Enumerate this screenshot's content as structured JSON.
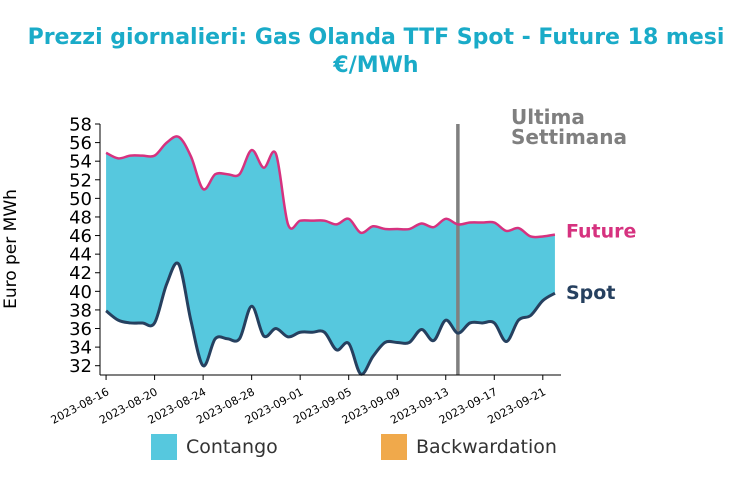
{
  "title_line1": "Prezzi giornalieri: Gas Olanda TTF Spot - Future 18 mesi",
  "title_line2": "€/MWh",
  "chart_data": {
    "type": "area",
    "title": "Prezzi giornalieri: Gas Olanda TTF Spot - Future 18 mesi €/MWh",
    "ylabel": "Euro per MWh",
    "xlabel": "",
    "ylim": [
      31,
      58
    ],
    "yticks": [
      32,
      34,
      36,
      38,
      40,
      42,
      44,
      46,
      48,
      50,
      52,
      54,
      56,
      58
    ],
    "xticks": [
      "2023-08-16",
      "2023-08-20",
      "2023-08-24",
      "2023-08-28",
      "2023-09-01",
      "2023-09-05",
      "2023-09-09",
      "2023-09-13",
      "2023-09-17",
      "2023-09-21"
    ],
    "grid": false,
    "marker": {
      "date": "2023-09-14",
      "label_line1": "Ultima",
      "label_line2": "Settimana"
    },
    "series": [
      {
        "name": "Future",
        "color": "#d6327f",
        "points": [
          [
            "2023-08-16",
            54.9
          ],
          [
            "2023-08-17",
            54.3
          ],
          [
            "2023-08-18",
            54.6
          ],
          [
            "2023-08-19",
            54.6
          ],
          [
            "2023-08-20",
            54.6
          ],
          [
            "2023-08-21",
            56.0
          ],
          [
            "2023-08-22",
            56.6
          ],
          [
            "2023-08-23",
            54.5
          ],
          [
            "2023-08-24",
            51.0
          ],
          [
            "2023-08-25",
            52.6
          ],
          [
            "2023-08-26",
            52.6
          ],
          [
            "2023-08-27",
            52.6
          ],
          [
            "2023-08-28",
            55.2
          ],
          [
            "2023-08-29",
            53.3
          ],
          [
            "2023-08-30",
            54.8
          ],
          [
            "2023-08-31",
            47.2
          ],
          [
            "2023-09-01",
            47.6
          ],
          [
            "2023-09-02",
            47.6
          ],
          [
            "2023-09-03",
            47.6
          ],
          [
            "2023-09-04",
            47.2
          ],
          [
            "2023-09-05",
            47.8
          ],
          [
            "2023-09-06",
            46.3
          ],
          [
            "2023-09-07",
            47.0
          ],
          [
            "2023-09-08",
            46.7
          ],
          [
            "2023-09-09",
            46.7
          ],
          [
            "2023-09-10",
            46.7
          ],
          [
            "2023-09-11",
            47.3
          ],
          [
            "2023-09-12",
            46.9
          ],
          [
            "2023-09-13",
            47.8
          ],
          [
            "2023-09-14",
            47.2
          ],
          [
            "2023-09-15",
            47.4
          ],
          [
            "2023-09-16",
            47.4
          ],
          [
            "2023-09-17",
            47.4
          ],
          [
            "2023-09-18",
            46.5
          ],
          [
            "2023-09-19",
            46.8
          ],
          [
            "2023-09-20",
            45.9
          ],
          [
            "2023-09-21",
            45.9
          ],
          [
            "2023-09-22",
            46.1
          ]
        ]
      },
      {
        "name": "Spot",
        "color": "#26405f",
        "points": [
          [
            "2023-08-16",
            37.9
          ],
          [
            "2023-08-17",
            36.9
          ],
          [
            "2023-08-18",
            36.6
          ],
          [
            "2023-08-19",
            36.6
          ],
          [
            "2023-08-20",
            36.6
          ],
          [
            "2023-08-21",
            40.8
          ],
          [
            "2023-08-22",
            42.9
          ],
          [
            "2023-08-23",
            36.8
          ],
          [
            "2023-08-24",
            32.0
          ],
          [
            "2023-08-25",
            34.9
          ],
          [
            "2023-08-26",
            34.9
          ],
          [
            "2023-08-27",
            34.9
          ],
          [
            "2023-08-28",
            38.4
          ],
          [
            "2023-08-29",
            35.2
          ],
          [
            "2023-08-30",
            36.0
          ],
          [
            "2023-08-31",
            35.1
          ],
          [
            "2023-09-01",
            35.6
          ],
          [
            "2023-09-02",
            35.6
          ],
          [
            "2023-09-03",
            35.6
          ],
          [
            "2023-09-04",
            33.7
          ],
          [
            "2023-09-05",
            34.4
          ],
          [
            "2023-09-06",
            31.1
          ],
          [
            "2023-09-07",
            33.0
          ],
          [
            "2023-09-08",
            34.5
          ],
          [
            "2023-09-09",
            34.5
          ],
          [
            "2023-09-10",
            34.5
          ],
          [
            "2023-09-11",
            35.9
          ],
          [
            "2023-09-12",
            34.7
          ],
          [
            "2023-09-13",
            36.9
          ],
          [
            "2023-09-14",
            35.5
          ],
          [
            "2023-09-15",
            36.6
          ],
          [
            "2023-09-16",
            36.6
          ],
          [
            "2023-09-17",
            36.6
          ],
          [
            "2023-09-18",
            34.6
          ],
          [
            "2023-09-19",
            36.9
          ],
          [
            "2023-09-20",
            37.4
          ],
          [
            "2023-09-21",
            39.0
          ],
          [
            "2023-09-22",
            39.8
          ]
        ]
      }
    ],
    "areas": [
      {
        "name": "Contango",
        "color": "#56c8de"
      },
      {
        "name": "Backwardation",
        "color": "#f0a94b"
      }
    ],
    "legend": "bottom"
  }
}
